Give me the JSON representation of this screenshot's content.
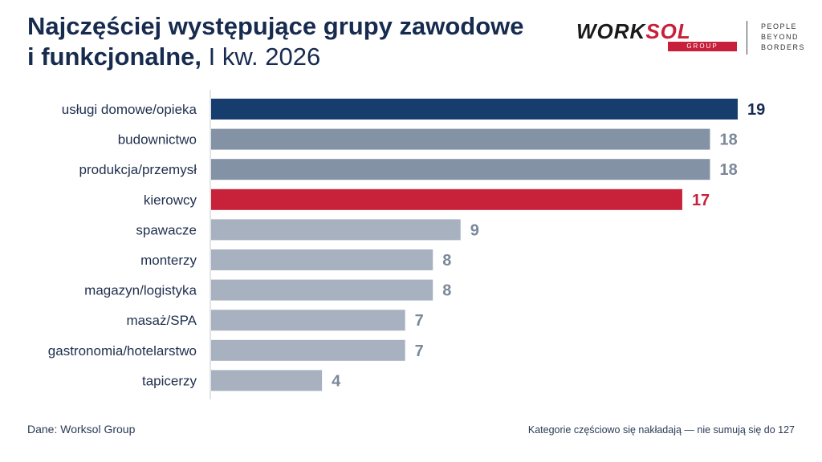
{
  "header": {
    "title_bold_line1": "Najczęściej występujące grupy zawodowe",
    "title_bold_line2": "i funkcjonalne,",
    "title_light": " I kw. 2026"
  },
  "logo": {
    "word_part1": "WORK",
    "word_part2": "SOL",
    "group": "GROUP",
    "tagline": [
      "PEOPLE",
      "BEYOND",
      "BORDERS"
    ]
  },
  "chart_data": {
    "type": "bar",
    "orientation": "horizontal",
    "categories": [
      "usługi domowe/opieka",
      "budownictwo",
      "produkcja/przemysł",
      "kierowcy",
      "spawacze",
      "monterzy",
      "magazyn/logistyka",
      "masaż/SPA",
      "gastronomia/hotelarstwo",
      "tapicerzy"
    ],
    "values": [
      19,
      18,
      18,
      17,
      9,
      8,
      8,
      7,
      7,
      4
    ],
    "bar_colors": [
      "#173c6e",
      "#8492a6",
      "#8492a6",
      "#c8213a",
      "#a7b1bf",
      "#a7b1bf",
      "#a7b1bf",
      "#a7b1bf",
      "#a7b1bf",
      "#a7b1bf"
    ],
    "label_colors": [
      "#172b4f",
      "#7b8899",
      "#7b8899",
      "#c8213a",
      "#7b8899",
      "#7b8899",
      "#7b8899",
      "#7b8899",
      "#7b8899",
      "#7b8899"
    ],
    "xlim": [
      0,
      19
    ]
  },
  "footer": {
    "source": "Dane: Worksol Group",
    "note": "Kategorie częściowo się nakładają — nie sumują się do 127"
  }
}
